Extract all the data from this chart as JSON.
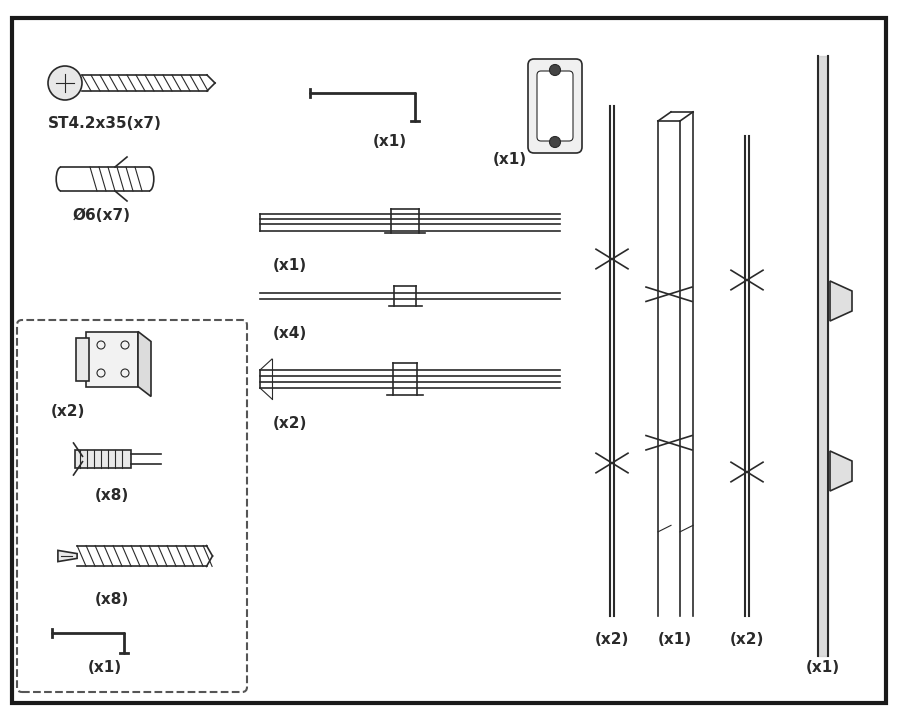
{
  "bg_color": "#ffffff",
  "border_color": "#1a1a1a",
  "line_color": "#2a2a2a",
  "labels": {
    "screw_st": "ST4.2x35(x7)",
    "anchor": "Ø6(x7)",
    "handle": "(x1)",
    "allen": "(x1)",
    "hinge": "(x2)",
    "plug": "(x8)",
    "bolt": "(x8)",
    "allen2": "(x1)",
    "rail1": "(x1)",
    "rail2": "(x4)",
    "rail3": "(x2)",
    "col1": "(x2)",
    "col2": "(x1)",
    "col3": "(x2)",
    "col4": "(x1)"
  },
  "font_size_label": 11
}
